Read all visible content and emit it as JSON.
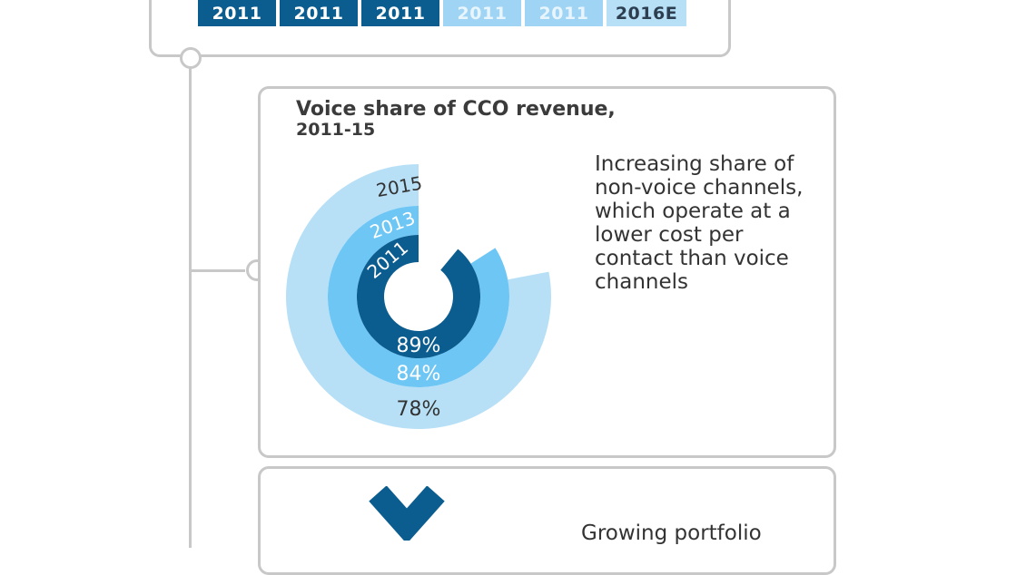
{
  "top_strip": {
    "years": [
      "2011",
      "2011",
      "2011",
      "2011",
      "2011",
      "2016E"
    ]
  },
  "voice_card": {
    "title": "Voice share of CCO revenue,",
    "subtitle": "2011-15",
    "description": "Increasing share of non-voice channels, which operate at a lower cost per contact than voice channels"
  },
  "bottom_card": {
    "text": "Growing portfolio"
  },
  "colors": {
    "dark": "#0b5c8f",
    "mid": "#6ec6f5",
    "light": "#b7e0f7",
    "timeline": "#c8c8c8"
  },
  "icons": {
    "bottom_icon": "chevron-down-icon"
  },
  "chart_data": {
    "type": "radial-bar",
    "title": "Voice share of CCO revenue,",
    "subtitle": "2011-15",
    "unit": "%",
    "series": [
      {
        "name": "2011",
        "value": 89,
        "label": "89%"
      },
      {
        "name": "2013",
        "value": 84,
        "label": "84%"
      },
      {
        "name": "2015",
        "value": 78,
        "label": "78%"
      }
    ]
  }
}
